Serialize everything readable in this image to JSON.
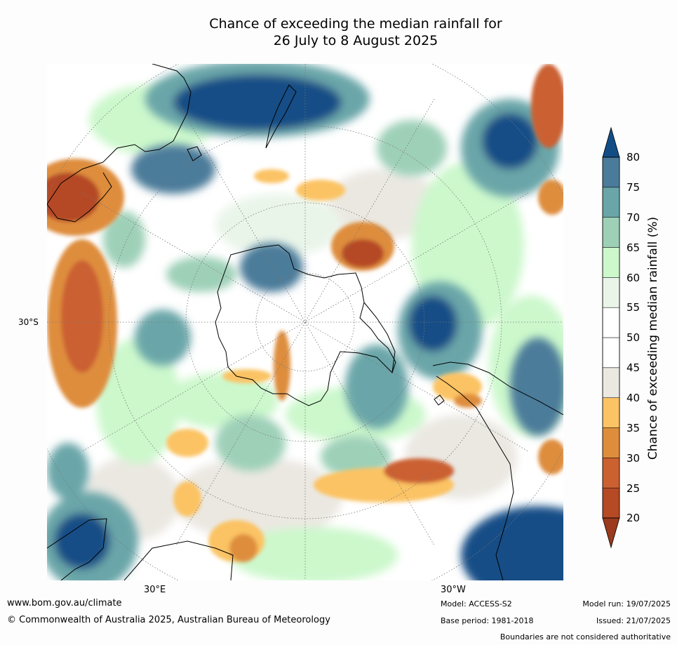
{
  "title_line1": "Chance of exceeding the median rainfall for",
  "title_line2": "26 July to 8 August 2025",
  "map": {
    "projection": "south-polar-stereographic",
    "lat_label": "30°S",
    "lon_labels": [
      "30°E",
      "30°W"
    ]
  },
  "colorbar": {
    "label": "Chance of exceeding median rainfall (%)",
    "ticks": [
      "80",
      "75",
      "70",
      "65",
      "60",
      "55",
      "50",
      "45",
      "40",
      "35",
      "30",
      "25",
      "20"
    ],
    "colors": [
      "#9b3a1c",
      "#b54a25",
      "#cb6131",
      "#de8d3c",
      "#fbc363",
      "#ebe8e2",
      "#ffffff",
      "#ffffff",
      "#eaf5ea",
      "#ccf8cc",
      "#9ed0b8",
      "#6aa6a9",
      "#4b7b9a",
      "#134d86"
    ]
  },
  "footer": {
    "url": "www.bom.gov.au/climate",
    "copyright": "© Commonwealth of Australia 2025, Australian Bureau of Meteorology",
    "model": "Model: ACCESS-S2",
    "base_period": "Base period: 1981-2018",
    "model_run": "Model run: 19/07/2025",
    "issued": "Issued: 21/07/2025",
    "disclaimer": "Boundaries are not considered authoritative"
  }
}
